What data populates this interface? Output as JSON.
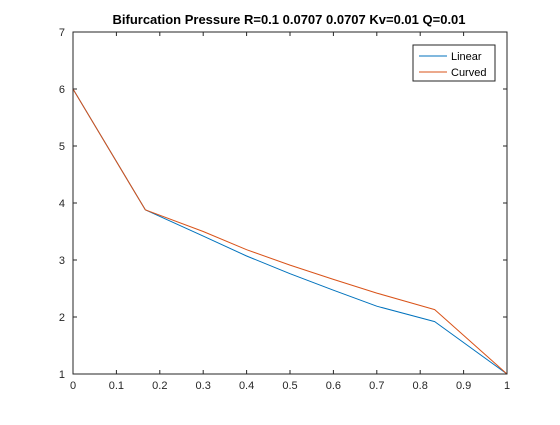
{
  "chart_data": {
    "type": "line",
    "title": "Bifurcation Pressure R=0.1 0.0707 0.0707 Kv=0.01 Q=0.01",
    "xlabel": "",
    "ylabel": "",
    "xlim": [
      0,
      1
    ],
    "ylim": [
      1,
      7
    ],
    "xticks": [
      0,
      0.1,
      0.2,
      0.3,
      0.4,
      0.5,
      0.6,
      0.7,
      0.8,
      0.9,
      1
    ],
    "xtick_labels": [
      "0",
      "0.1",
      "0.2",
      "0.3",
      "0.4",
      "0.5",
      "0.6",
      "0.7",
      "0.8",
      "0.9",
      "1"
    ],
    "yticks": [
      1,
      2,
      3,
      4,
      5,
      6,
      7
    ],
    "ytick_labels": [
      "1",
      "2",
      "3",
      "4",
      "5",
      "6",
      "7"
    ],
    "grid": false,
    "legend_position": "top-right",
    "series": [
      {
        "name": "Linear",
        "color": "#0072BD",
        "x": [
          0,
          0.1667,
          0.3,
          0.4,
          0.5,
          0.6,
          0.7,
          0.8333,
          1
        ],
        "y": [
          6.0,
          3.88,
          3.42,
          3.07,
          2.76,
          2.47,
          2.19,
          1.92,
          1.0
        ]
      },
      {
        "name": "Curved",
        "color": "#D95319",
        "x": [
          0,
          0.1667,
          0.3,
          0.4,
          0.5,
          0.6,
          0.7,
          0.8333,
          1
        ],
        "y": [
          6.0,
          3.88,
          3.5,
          3.18,
          2.91,
          2.66,
          2.42,
          2.13,
          1.0
        ]
      }
    ]
  }
}
